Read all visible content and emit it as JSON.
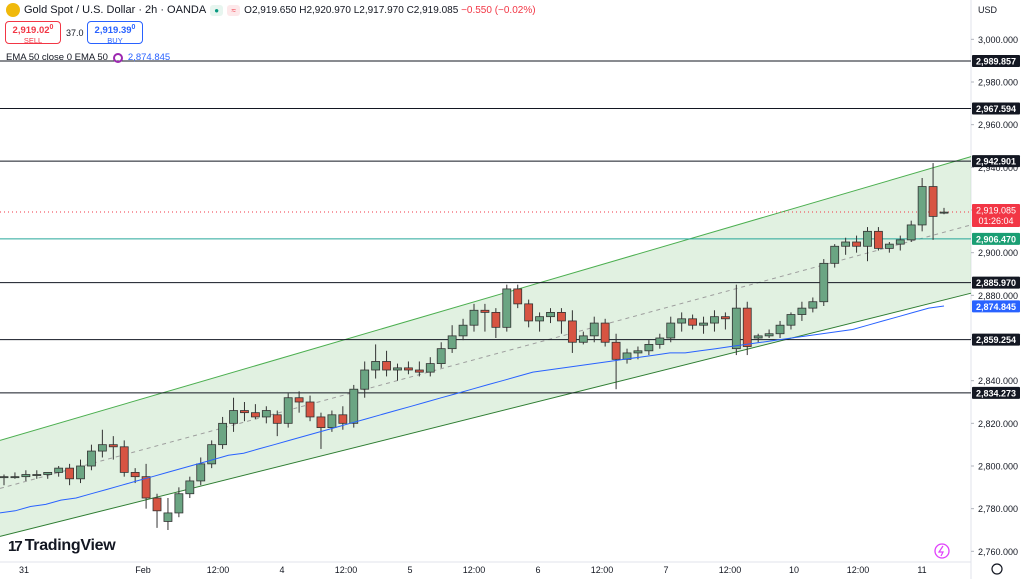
{
  "header": {
    "title": "Gold Spot / U.S. Dollar · 2h · OANDA",
    "o": "O2,919.650",
    "h": "H2,920.970",
    "l": "L2,917.970",
    "c": "C2,919.085",
    "change": "−0.550 (−0.02%)",
    "sell_price": "2,919.02",
    "sell_sup": "0",
    "sell_label": "SELL",
    "spread": "37.0",
    "buy_price": "2,919.39",
    "buy_sup": "0",
    "buy_label": "BUY",
    "indicator": "EMA 50 close 0 EMA 50",
    "indicator_value": "2,874.845",
    "currency": "USD"
  },
  "brand": "TradingView",
  "colors": {
    "up": "#6ba583",
    "down": "#d75442",
    "ema": "#2962ff",
    "channel_fill": "#c8e6c9",
    "channel_line": "#4caf50"
  },
  "chart_data": {
    "type": "candlestick",
    "symbol": "XAUUSD",
    "timeframe": "2h",
    "ylim": [
      2755,
      3010
    ],
    "y_ticks": [
      "3,000.000",
      "2,980.000",
      "2,960.000",
      "2,940.000",
      "2,920.000",
      "2,900.000",
      "2,880.000",
      "2,860.000",
      "2,840.000",
      "2,820.000",
      "2,800.000",
      "2,780.000",
      "2,760.000"
    ],
    "x_ticks": [
      "31",
      "Feb",
      "12:00",
      "4",
      "12:00",
      "5",
      "12:00",
      "6",
      "12:00",
      "7",
      "12:00",
      "10",
      "12:00",
      "11"
    ],
    "candles": [
      [
        2795,
        2796,
        2791,
        2795
      ],
      [
        2795,
        2797,
        2794,
        2795
      ],
      [
        2795,
        2798,
        2793,
        2796
      ],
      [
        2796,
        2798,
        2794,
        2796
      ],
      [
        2796,
        2797,
        2794,
        2797
      ],
      [
        2797,
        2800,
        2795,
        2799
      ],
      [
        2799,
        2801,
        2791,
        2794
      ],
      [
        2794,
        2803,
        2792,
        2800
      ],
      [
        2800,
        2810,
        2798,
        2807
      ],
      [
        2807,
        2817,
        2804,
        2810
      ],
      [
        2810,
        2814,
        2803,
        2809
      ],
      [
        2809,
        2812,
        2795,
        2797
      ],
      [
        2797,
        2799,
        2792,
        2795
      ],
      [
        2795,
        2801,
        2780,
        2785
      ],
      [
        2785,
        2787,
        2771,
        2779
      ],
      [
        2774,
        2785,
        2770,
        2778
      ],
      [
        2778,
        2790,
        2776,
        2787
      ],
      [
        2787,
        2795,
        2785,
        2793
      ],
      [
        2793,
        2804,
        2791,
        2801
      ],
      [
        2801,
        2812,
        2799,
        2810
      ],
      [
        2810,
        2823,
        2808,
        2820
      ],
      [
        2820,
        2832,
        2816,
        2826
      ],
      [
        2826,
        2830,
        2821,
        2825
      ],
      [
        2825,
        2829,
        2822,
        2823
      ],
      [
        2823,
        2828,
        2820,
        2826
      ],
      [
        2824,
        2826,
        2814,
        2820
      ],
      [
        2820,
        2834,
        2818,
        2832
      ],
      [
        2832,
        2835,
        2825,
        2830
      ],
      [
        2830,
        2833,
        2821,
        2823
      ],
      [
        2823,
        2825,
        2808,
        2818
      ],
      [
        2818,
        2826,
        2816,
        2824
      ],
      [
        2824,
        2828,
        2817,
        2820
      ],
      [
        2820,
        2838,
        2818,
        2836
      ],
      [
        2836,
        2849,
        2832,
        2845
      ],
      [
        2845,
        2857,
        2841,
        2849
      ],
      [
        2849,
        2854,
        2842,
        2845
      ],
      [
        2845,
        2848,
        2840,
        2846
      ],
      [
        2846,
        2849,
        2843,
        2845
      ],
      [
        2845,
        2849,
        2842,
        2844
      ],
      [
        2844,
        2851,
        2842,
        2848
      ],
      [
        2848,
        2858,
        2846,
        2855
      ],
      [
        2855,
        2866,
        2853,
        2861
      ],
      [
        2861,
        2869,
        2859,
        2866
      ],
      [
        2866,
        2876,
        2863,
        2873
      ],
      [
        2873,
        2876,
        2863,
        2872
      ],
      [
        2872,
        2874,
        2860,
        2865
      ],
      [
        2865,
        2885,
        2863,
        2883
      ],
      [
        2883,
        2885,
        2874,
        2876
      ],
      [
        2876,
        2878,
        2865,
        2868
      ],
      [
        2868,
        2872,
        2863,
        2870
      ],
      [
        2870,
        2874,
        2867,
        2872
      ],
      [
        2872,
        2874,
        2862,
        2868
      ],
      [
        2868,
        2873,
        2853,
        2858
      ],
      [
        2858,
        2863,
        2857,
        2861
      ],
      [
        2861,
        2870,
        2858,
        2867
      ],
      [
        2867,
        2869,
        2856,
        2858
      ],
      [
        2858,
        2862,
        2836,
        2850
      ],
      [
        2850,
        2855,
        2848,
        2853
      ],
      [
        2853,
        2856,
        2850,
        2854
      ],
      [
        2854,
        2859,
        2852,
        2857
      ],
      [
        2857,
        2862,
        2855,
        2860
      ],
      [
        2860,
        2870,
        2858,
        2867
      ],
      [
        2867,
        2872,
        2863,
        2869
      ],
      [
        2869,
        2871,
        2864,
        2866
      ],
      [
        2866,
        2870,
        2862,
        2867
      ],
      [
        2867,
        2873,
        2863,
        2870
      ],
      [
        2870,
        2872,
        2864,
        2869
      ],
      [
        2855,
        2885,
        2852,
        2874
      ],
      [
        2874,
        2877,
        2852,
        2856
      ],
      [
        2860,
        2862,
        2858,
        2861
      ],
      [
        2861,
        2864,
        2860,
        2862
      ],
      [
        2862,
        2868,
        2860,
        2866
      ],
      [
        2866,
        2872,
        2864,
        2871
      ],
      [
        2871,
        2877,
        2868,
        2874
      ],
      [
        2874,
        2879,
        2872,
        2877
      ],
      [
        2877,
        2897,
        2875,
        2895
      ],
      [
        2895,
        2904,
        2893,
        2903
      ],
      [
        2903,
        2907,
        2899,
        2905
      ],
      [
        2905,
        2908,
        2900,
        2903
      ],
      [
        2903,
        2912,
        2896,
        2910
      ],
      [
        2910,
        2912,
        2901,
        2902
      ],
      [
        2902,
        2905,
        2900,
        2904
      ],
      [
        2904,
        2908,
        2901,
        2906
      ],
      [
        2906,
        2915,
        2905,
        2913
      ],
      [
        2913,
        2935,
        2910,
        2931
      ],
      [
        2931,
        2942,
        2906,
        2917
      ],
      [
        2919,
        2921,
        2918,
        2919
      ]
    ],
    "ema50": [
      2778,
      2779,
      2781,
      2782,
      2784,
      2785,
      2787,
      2789,
      2791,
      2793,
      2795,
      2797,
      2799,
      2801,
      2803,
      2805,
      2806,
      2808,
      2810,
      2812,
      2814,
      2816,
      2818,
      2820,
      2822,
      2824,
      2826,
      2828,
      2830,
      2832,
      2834,
      2836,
      2838,
      2840,
      2842,
      2844,
      2845,
      2846,
      2847,
      2848,
      2849,
      2850,
      2851,
      2852,
      2853,
      2853,
      2854,
      2855,
      2856,
      2857,
      2858,
      2859,
      2860,
      2861,
      2862,
      2863,
      2864,
      2866,
      2868,
      2870,
      2872,
      2874,
      2875
    ],
    "channel": {
      "upper": {
        "x0": 0,
        "y0": 2812,
        "x1": 1,
        "y1": 2945
      },
      "lower": {
        "x0": 0,
        "y0": 2767,
        "x1": 1,
        "y1": 2881
      },
      "mid_dashed": true
    },
    "levels": [
      "2,989.857",
      "2,967.594",
      "2,942.901",
      "2,906.470",
      "2,885.970",
      "2,859.254",
      "2,834.273"
    ],
    "level_values": [
      2989.857,
      2967.594,
      2942.901,
      2906.47,
      2885.97,
      2859.254,
      2834.273
    ],
    "current_price": "2,919.085",
    "current_value": 2919.085,
    "countdown": "01:26:04",
    "ema_label": "2,874.845",
    "ema_value": 2874.845
  }
}
